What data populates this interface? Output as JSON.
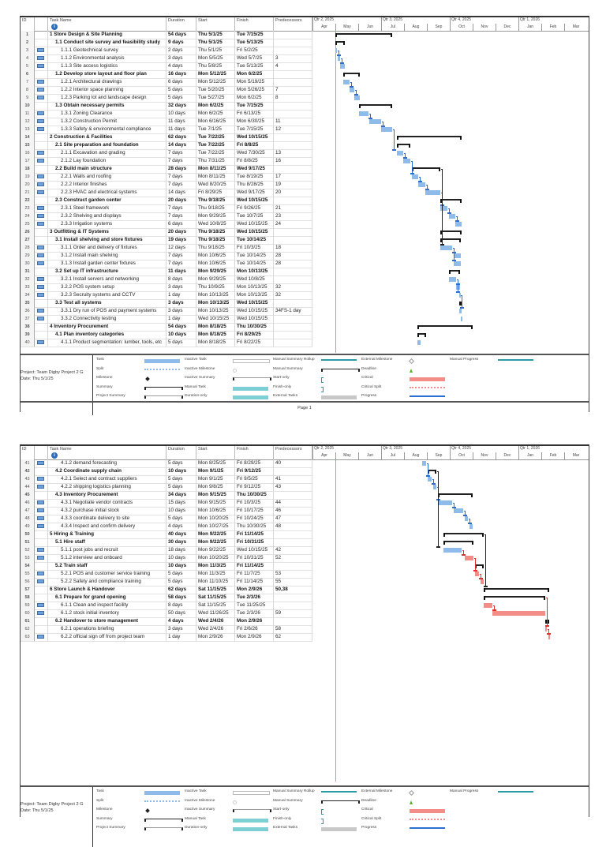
{
  "columns": {
    "id": "ID",
    "indicators": "i",
    "task_name": "Task Name",
    "duration": "Duration",
    "start": "Start",
    "finish": "Finish",
    "predecessors": "Predecessors"
  },
  "timescale": {
    "quarters": [
      "Qtr 2, 2025",
      "Qtr 3, 2025",
      "Qtr 4, 2025",
      "Qtr 1, 2026"
    ],
    "months": [
      "Apr",
      "May",
      "Jun",
      "Jul",
      "Aug",
      "Sep",
      "Oct",
      "Nov",
      "Dec",
      "Jan",
      "Feb",
      "Mar"
    ],
    "status_date": "5/1/25"
  },
  "colors": {
    "task": "#8fbbea",
    "critical": "#f28d88",
    "summary": "#222222",
    "status_line": "#7cc576",
    "link": "#2a6ecf",
    "critical_link": "#e03030"
  },
  "pages": [
    {
      "first": 1,
      "last": 40,
      "footer": "Page 1"
    },
    {
      "first": 41,
      "last": 63,
      "footer": ""
    }
  ],
  "tasks": [
    {
      "id": 1,
      "name": "1 Store Design & Site Planning",
      "duration": "54 days",
      "start": "Thu 5/1/25",
      "finish": "Tue 7/15/25",
      "pred": "",
      "summary": true
    },
    {
      "id": 2,
      "name": "1.1 Conduct site survey and feasibility study",
      "duration": "9 days",
      "start": "Thu 5/1/25",
      "finish": "Tue 5/13/25",
      "pred": "",
      "summary": true
    },
    {
      "id": 3,
      "name": "1.1.1 Geotechnical survey",
      "duration": "2 days",
      "start": "Thu 5/1/25",
      "finish": "Fri 5/2/25",
      "pred": ""
    },
    {
      "id": 4,
      "name": "1.1.2 Environmental analysis",
      "duration": "3 days",
      "start": "Mon 5/5/25",
      "finish": "Wed 5/7/25",
      "pred": "3"
    },
    {
      "id": 5,
      "name": "1.1.3 Site access logistics",
      "duration": "4 days",
      "start": "Thu 5/8/25",
      "finish": "Tue 5/13/25",
      "pred": "4"
    },
    {
      "id": 6,
      "name": "1.2 Develop store layout and floor plan",
      "duration": "16 days",
      "start": "Mon 5/12/25",
      "finish": "Mon 6/2/25",
      "pred": "",
      "summary": true
    },
    {
      "id": 7,
      "name": "1.2.1 Architectural drawings",
      "duration": "6 days",
      "start": "Mon 5/12/25",
      "finish": "Mon 5/19/25",
      "pred": ""
    },
    {
      "id": 8,
      "name": "1.2.2 Interior space planning",
      "duration": "5 days",
      "start": "Tue 5/20/25",
      "finish": "Mon 5/26/25",
      "pred": "7"
    },
    {
      "id": 9,
      "name": "1.2.3 Parking lot and landscape design",
      "duration": "5 days",
      "start": "Tue 5/27/25",
      "finish": "Mon 6/2/25",
      "pred": "8"
    },
    {
      "id": 10,
      "name": "1.3 Obtain necessary permits",
      "duration": "32 days",
      "start": "Mon 6/2/25",
      "finish": "Tue 7/15/25",
      "pred": "",
      "summary": true
    },
    {
      "id": 11,
      "name": "1.3.1 Zoning Clearance",
      "duration": "10 days",
      "start": "Mon 6/2/25",
      "finish": "Fri 6/13/25",
      "pred": ""
    },
    {
      "id": 12,
      "name": "1.3.2 Construction Permit",
      "duration": "11 days",
      "start": "Mon 6/16/25",
      "finish": "Mon 6/30/25",
      "pred": "11"
    },
    {
      "id": 13,
      "name": "1.3.3 Safety & environmental compliance",
      "duration": "11 days",
      "start": "Tue 7/1/25",
      "finish": "Tue 7/15/25",
      "pred": "12"
    },
    {
      "id": 14,
      "name": "2 Construction & Facilities",
      "duration": "62 days",
      "start": "Tue 7/22/25",
      "finish": "Wed 10/15/25",
      "pred": "",
      "summary": true
    },
    {
      "id": 15,
      "name": "2.1 Site preparation and foundation",
      "duration": "14 days",
      "start": "Tue 7/22/25",
      "finish": "Fri 8/8/25",
      "pred": "",
      "summary": true
    },
    {
      "id": 16,
      "name": "2.1.1 Excavation and grading",
      "duration": "7 days",
      "start": "Tue 7/22/25",
      "finish": "Wed 7/30/25",
      "pred": "13"
    },
    {
      "id": 17,
      "name": "2.1.2 Lay foundation",
      "duration": "7 days",
      "start": "Thu 7/31/25",
      "finish": "Fri 8/8/25",
      "pred": "16"
    },
    {
      "id": 18,
      "name": "2.2 Build main structure",
      "duration": "28 days",
      "start": "Mon 8/11/25",
      "finish": "Wed 9/17/25",
      "pred": "",
      "summary": true
    },
    {
      "id": 19,
      "name": "2.2.1 Walls and roofing",
      "duration": "7 days",
      "start": "Mon 8/11/25",
      "finish": "Tue 8/19/25",
      "pred": "17"
    },
    {
      "id": 20,
      "name": "2.2.2 Interior finishes",
      "duration": "7 days",
      "start": "Wed 8/20/25",
      "finish": "Thu 8/28/25",
      "pred": "19"
    },
    {
      "id": 21,
      "name": "2.2.3 HVAC and electrical systems",
      "duration": "14 days",
      "start": "Fri 8/29/25",
      "finish": "Wed 9/17/25",
      "pred": "20"
    },
    {
      "id": 22,
      "name": "2.3 Construct garden center",
      "duration": "20 days",
      "start": "Thu 9/18/25",
      "finish": "Wed 10/15/25",
      "pred": "",
      "summary": true
    },
    {
      "id": 23,
      "name": "2.3.1 Steel framework",
      "duration": "7 days",
      "start": "Thu 9/18/25",
      "finish": "Fri 9/26/25",
      "pred": "21"
    },
    {
      "id": 24,
      "name": "2.3.2 Shelving and displays",
      "duration": "7 days",
      "start": "Mon 9/29/25",
      "finish": "Tue 10/7/25",
      "pred": "23"
    },
    {
      "id": 25,
      "name": "2.3.3 Irrigation systems",
      "duration": "6 days",
      "start": "Wed 10/8/25",
      "finish": "Wed 10/15/25",
      "pred": "24"
    },
    {
      "id": 26,
      "name": "3 Outfitting & IT Systems",
      "duration": "20 days",
      "start": "Thu 9/18/25",
      "finish": "Wed 10/15/25",
      "pred": "",
      "summary": true
    },
    {
      "id": 27,
      "name": "3.1 Install shelving and store fixtures",
      "duration": "19 days",
      "start": "Thu 9/18/25",
      "finish": "Tue 10/14/25",
      "pred": "",
      "summary": true
    },
    {
      "id": 28,
      "name": "3.1.1 Order and delivery of fixtures",
      "duration": "12 days",
      "start": "Thu 9/18/25",
      "finish": "Fri 10/3/25",
      "pred": "18"
    },
    {
      "id": 29,
      "name": "3.1.2 Install main shelving",
      "duration": "7 days",
      "start": "Mon 10/6/25",
      "finish": "Tue 10/14/25",
      "pred": "28"
    },
    {
      "id": 30,
      "name": "3.1.3 Install garden center fixtures",
      "duration": "7 days",
      "start": "Mon 10/6/25",
      "finish": "Tue 10/14/25",
      "pred": "28"
    },
    {
      "id": 31,
      "name": "3.2 Set up IT infrastructure",
      "duration": "11 days",
      "start": "Mon 9/29/25",
      "finish": "Mon 10/13/25",
      "pred": "",
      "summary": true
    },
    {
      "id": 32,
      "name": "3.2.1 Install servers and networking",
      "duration": "8 days",
      "start": "Mon 9/29/25",
      "finish": "Wed 10/8/25",
      "pred": ""
    },
    {
      "id": 33,
      "name": "3.2.2 POS system setup",
      "duration": "3 days",
      "start": "Thu 10/9/25",
      "finish": "Mon 10/13/25",
      "pred": "32"
    },
    {
      "id": 34,
      "name": "3.2.3 Secruity systems and CCTV",
      "duration": "1 day",
      "start": "Mon 10/13/25",
      "finish": "Mon 10/13/25",
      "pred": "32"
    },
    {
      "id": 35,
      "name": "3.3 Test all systems",
      "duration": "3 days",
      "start": "Mon 10/13/25",
      "finish": "Wed 10/15/25",
      "pred": "",
      "summary": true
    },
    {
      "id": 36,
      "name": "3.3.1 Dry run of POS and payment systems",
      "duration": "3 days",
      "start": "Mon 10/13/25",
      "finish": "Wed 10/15/25",
      "pred": "34FS-1 day"
    },
    {
      "id": 37,
      "name": "3.3.2 Connectivity testing",
      "duration": "1 day",
      "start": "Wed 10/15/25",
      "finish": "Wed 10/15/25",
      "pred": ""
    },
    {
      "id": 38,
      "name": "4 Inventory Procurement",
      "duration": "54 days",
      "start": "Mon 8/18/25",
      "finish": "Thu 10/30/25",
      "pred": "",
      "summary": true
    },
    {
      "id": 39,
      "name": "4.1 Plan inventory categories",
      "duration": "10 days",
      "start": "Mon 8/18/25",
      "finish": "Fri 8/29/25",
      "pred": "",
      "summary": true
    },
    {
      "id": 40,
      "name": "4.1.1 Product segmentation: lumber, tools, etc",
      "duration": "5 days",
      "start": "Mon 8/18/25",
      "finish": "Fri 8/22/25",
      "pred": ""
    },
    {
      "id": 41,
      "name": "4.1.2 demand forecasting",
      "duration": "5 days",
      "start": "Mon 8/25/25",
      "finish": "Fri 8/29/25",
      "pred": "40"
    },
    {
      "id": 42,
      "name": "4.2 Coordinate supply chain",
      "duration": "10 days",
      "start": "Mon 9/1/25",
      "finish": "Fri 9/12/25",
      "pred": "",
      "summary": true
    },
    {
      "id": 43,
      "name": "4.2.1 Select and contract suppliers",
      "duration": "5 days",
      "start": "Mon 9/1/25",
      "finish": "Fri 9/5/25",
      "pred": "41"
    },
    {
      "id": 44,
      "name": "4.2.2 shipping logistics planning",
      "duration": "5 days",
      "start": "Mon 9/8/25",
      "finish": "Fri 9/12/25",
      "pred": "43"
    },
    {
      "id": 45,
      "name": "4.3 Inventory Procurement",
      "duration": "34 days",
      "start": "Mon 9/15/25",
      "finish": "Thu 10/30/25",
      "pred": "",
      "summary": true
    },
    {
      "id": 46,
      "name": "4.3.1 Negotiate vendor contracts",
      "duration": "15 days",
      "start": "Mon 9/15/25",
      "finish": "Fri 10/3/25",
      "pred": "44"
    },
    {
      "id": 47,
      "name": "4.3.2 purchase initial stock",
      "duration": "10 days",
      "start": "Mon 10/6/25",
      "finish": "Fri 10/17/25",
      "pred": "46"
    },
    {
      "id": 48,
      "name": "4.3.3 coordinate delivery to site",
      "duration": "5 days",
      "start": "Mon 10/20/25",
      "finish": "Fri 10/24/25",
      "pred": "47"
    },
    {
      "id": 49,
      "name": "4.3.4 Inspect and confirm delivery",
      "duration": "4 days",
      "start": "Mon 10/27/25",
      "finish": "Thu 10/30/25",
      "pred": "48"
    },
    {
      "id": 50,
      "name": "5 Hiring & Training",
      "duration": "40 days",
      "start": "Mon 9/22/25",
      "finish": "Fri 11/14/25",
      "pred": "",
      "summary": true
    },
    {
      "id": 51,
      "name": "5.1 Hire staff",
      "duration": "30 days",
      "start": "Mon 9/22/25",
      "finish": "Fri 10/31/25",
      "pred": "",
      "summary": true
    },
    {
      "id": 52,
      "name": "5.1.1 post jobs and recruit",
      "duration": "18 days",
      "start": "Mon 9/22/25",
      "finish": "Wed 10/15/25",
      "pred": "42"
    },
    {
      "id": 53,
      "name": "5.1.2 interview and onboard",
      "duration": "10 days",
      "start": "Mon 10/20/25",
      "finish": "Fri 10/31/25",
      "pred": "52",
      "critical": true
    },
    {
      "id": 54,
      "name": "5.2 Train staff",
      "duration": "10 days",
      "start": "Mon 11/3/25",
      "finish": "Fri 11/14/25",
      "pred": "",
      "summary": true
    },
    {
      "id": 55,
      "name": "5.2.1 POS and customer service training",
      "duration": "5 days",
      "start": "Mon 11/3/25",
      "finish": "Fri 11/7/25",
      "pred": "53",
      "critical": true
    },
    {
      "id": 56,
      "name": "5.2.2 Safety and compliance training",
      "duration": "5 days",
      "start": "Mon 11/10/25",
      "finish": "Fri 11/14/25",
      "pred": "55",
      "critical": true
    },
    {
      "id": 57,
      "name": "6 Store Launch & Handover",
      "duration": "62 days",
      "start": "Sat 11/15/25",
      "finish": "Mon 2/9/26",
      "pred": "50,38",
      "summary": true
    },
    {
      "id": 58,
      "name": "6.1 Prepare for grand opening",
      "duration": "58 days",
      "start": "Sat 11/15/25",
      "finish": "Tue 2/3/26",
      "pred": "",
      "summary": true
    },
    {
      "id": 59,
      "name": "6.1.1 Clean and inspect facility",
      "duration": "8 days",
      "start": "Sat 11/15/25",
      "finish": "Tue 11/25/25",
      "pred": "",
      "critical": true
    },
    {
      "id": 60,
      "name": "6.1.2 stock initial inventory",
      "duration": "50 days",
      "start": "Wed 11/26/25",
      "finish": "Tue 2/3/26",
      "pred": "59",
      "critical": true
    },
    {
      "id": 61,
      "name": "6.2 Handover to store management",
      "duration": "4 days",
      "start": "Wed 2/4/26",
      "finish": "Mon 2/9/26",
      "pred": "",
      "summary": true
    },
    {
      "id": 62,
      "name": "6.2.1 operations briefing",
      "duration": "3 days",
      "start": "Wed 2/4/26",
      "finish": "Fri 2/6/26",
      "pred": "58",
      "critical": true,
      "noicon": true
    },
    {
      "id": 63,
      "name": "6.2.2 official sign off from project team",
      "duration": "1 day",
      "start": "Mon 2/9/26",
      "finish": "Mon 2/9/26",
      "pred": "62",
      "critical": true
    }
  ],
  "legend": {
    "project": "Project: Team Digby Project 2 G",
    "date": "Date: Thu 5/1/25",
    "items": [
      {
        "label": "Task",
        "swatch": "task"
      },
      {
        "label": "Split",
        "swatch": "split"
      },
      {
        "label": "Milestone",
        "swatch": "milestone"
      },
      {
        "label": "Summary",
        "swatch": "summary"
      },
      {
        "label": "Project Summary",
        "swatch": "project-summary"
      },
      {
        "label": "Inactive Task",
        "swatch": "inactive-task"
      },
      {
        "label": "Inactive Milestone",
        "swatch": "inactive-milestone"
      },
      {
        "label": "Inactive Summary",
        "swatch": "inactive-summary"
      },
      {
        "label": "Manual Task",
        "swatch": "manual-task"
      },
      {
        "label": "Duration-only",
        "swatch": "duration-only"
      },
      {
        "label": "Manual Summary Rollup",
        "swatch": "manual-summary-rollup"
      },
      {
        "label": "Manual Summary",
        "swatch": "manual-summary"
      },
      {
        "label": "Start-only",
        "swatch": "start-only"
      },
      {
        "label": "Finish-only",
        "swatch": "finish-only"
      },
      {
        "label": "External Tasks",
        "swatch": "external-tasks"
      },
      {
        "label": "External Milestone",
        "swatch": "external-milestone"
      },
      {
        "label": "Deadline",
        "swatch": "deadline"
      },
      {
        "label": "Critical",
        "swatch": "critical"
      },
      {
        "label": "Critical Split",
        "swatch": "critical-split"
      },
      {
        "label": "Progress",
        "swatch": "progress"
      },
      {
        "label": "Manual Progress",
        "swatch": "manual-progress"
      }
    ]
  }
}
